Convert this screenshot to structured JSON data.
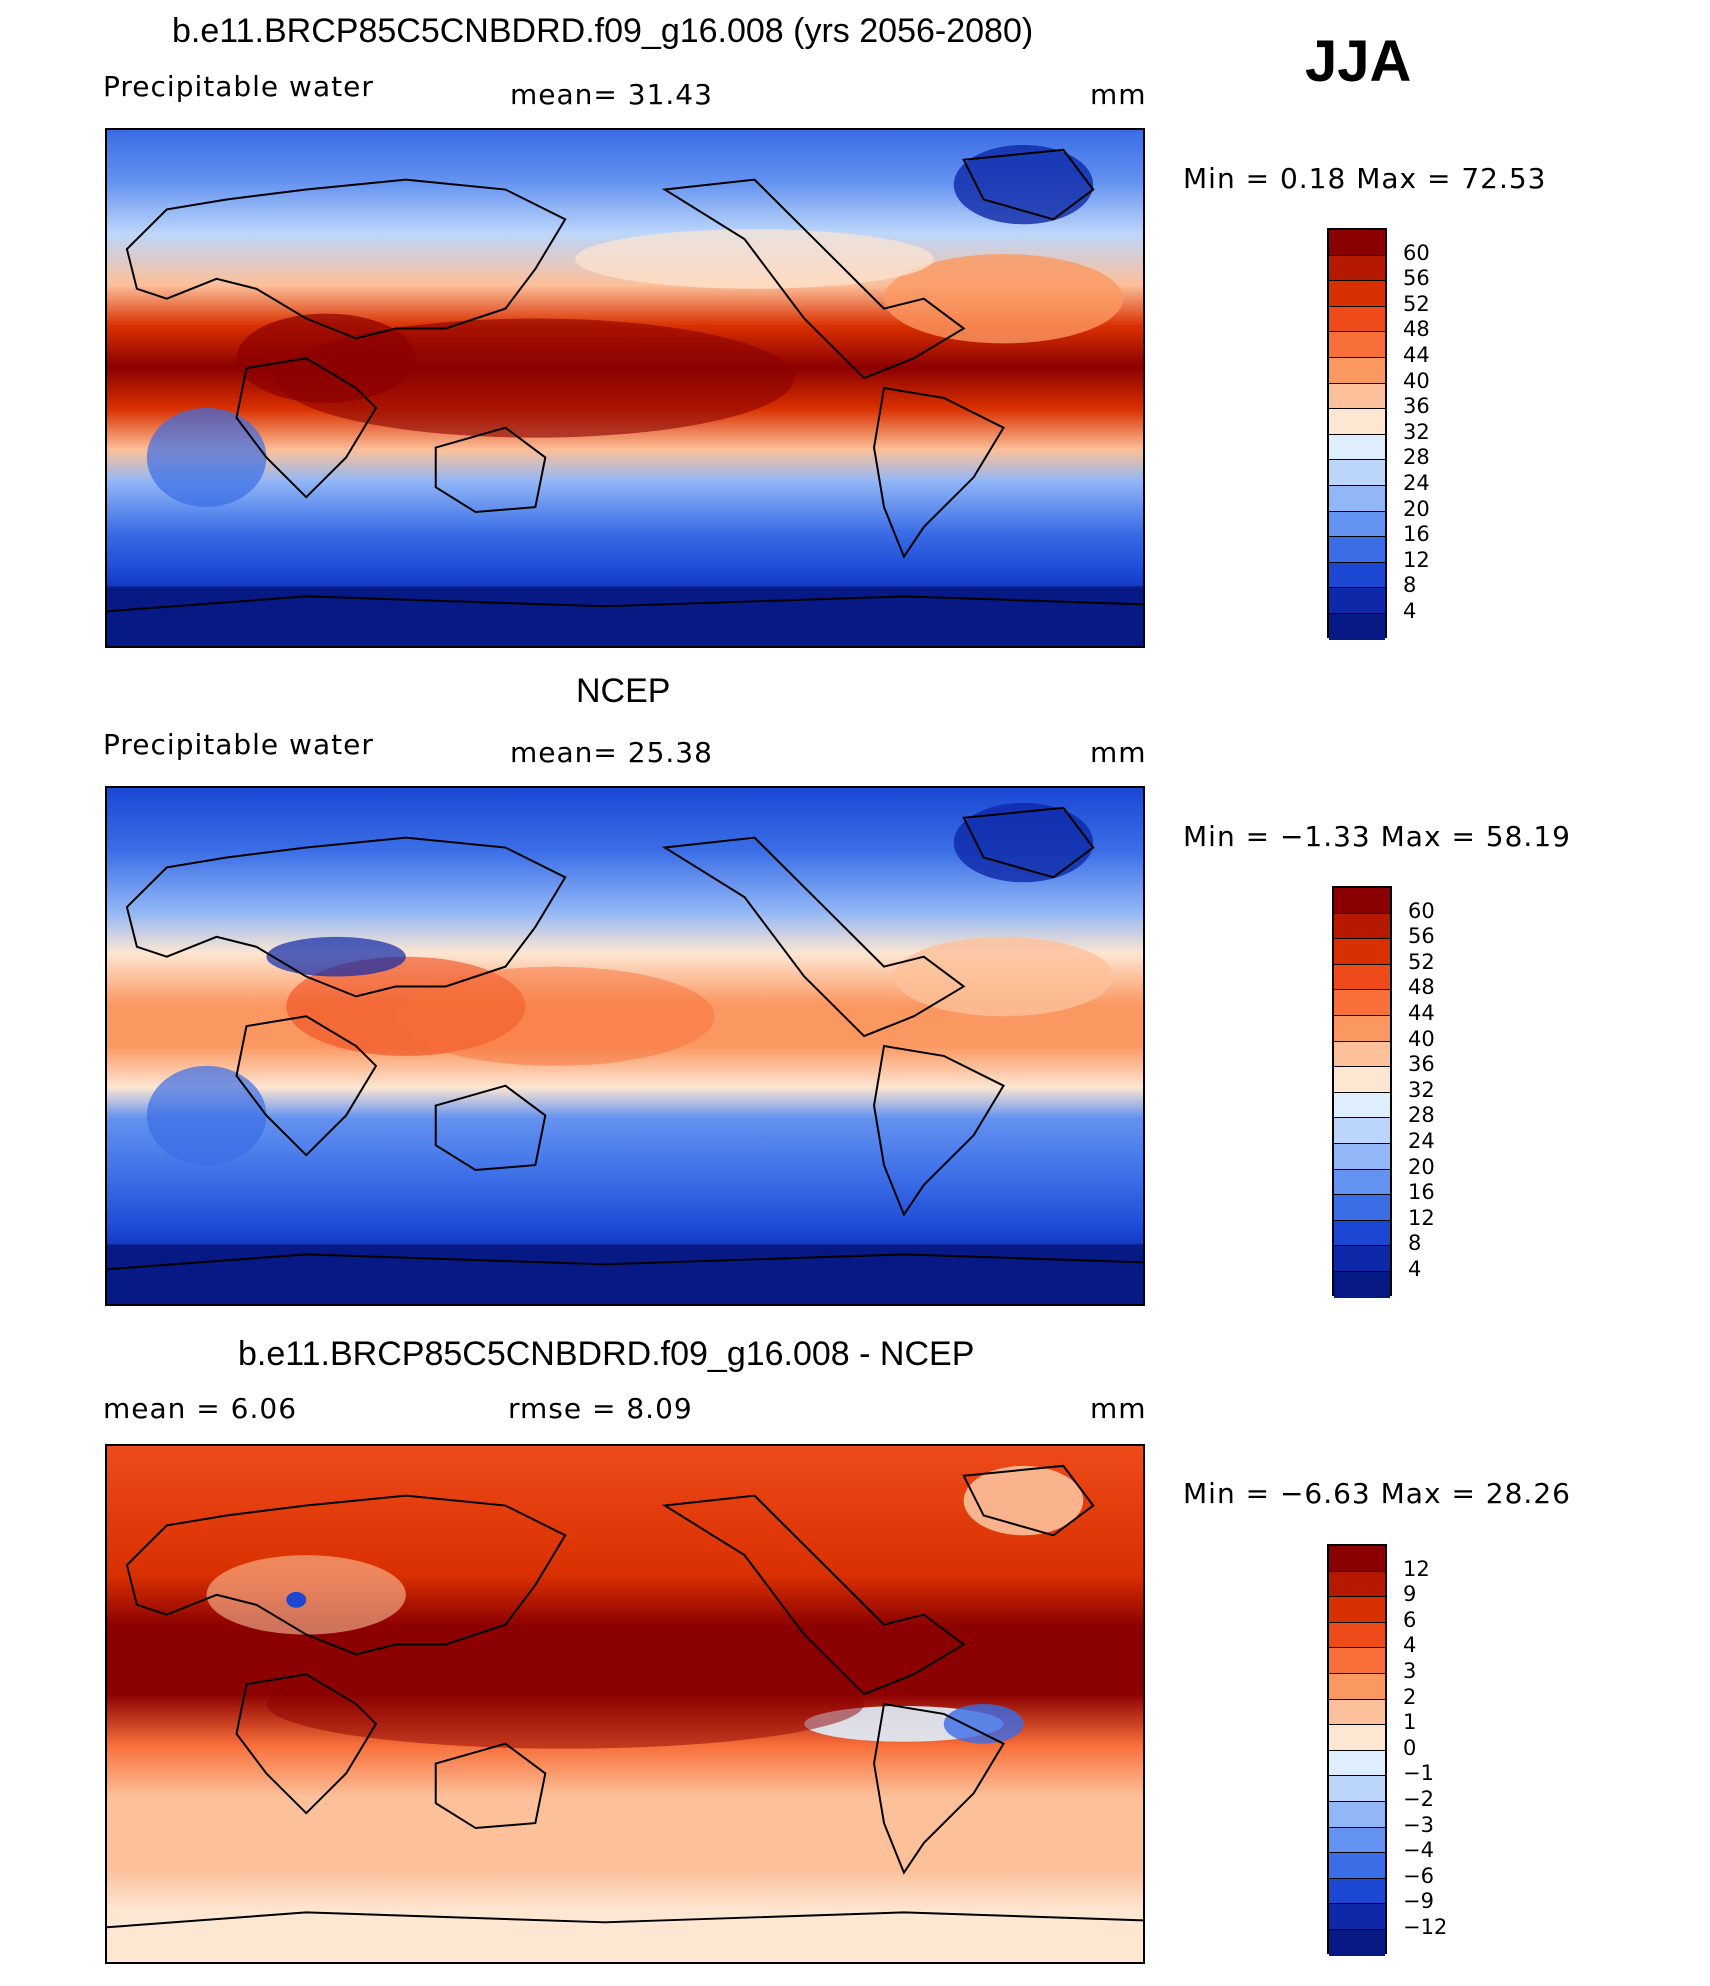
{
  "season": "JJA",
  "panels": [
    {
      "title": "b.e11.BRCP85C5CNBDRD.f09_g16.008 (yrs 2056-2080)",
      "left_label": "Precipitable  water",
      "mid_label": "mean=   31.43",
      "units": "mm",
      "minmax": "Min  =     0.18  Max  =    72.53",
      "colorbar": {
        "ticks": [
          "60",
          "56",
          "52",
          "48",
          "44",
          "40",
          "36",
          "32",
          "28",
          "24",
          "20",
          "16",
          "12",
          "8",
          "4"
        ],
        "colors": [
          "#8b0000",
          "#b51a00",
          "#d93000",
          "#ee4a1a",
          "#f86f3a",
          "#fb9862",
          "#fcc09a",
          "#fde6d2",
          "#dfeefc",
          "#bcd6fb",
          "#92b7f6",
          "#6492f0",
          "#3a6de6",
          "#1b47d3",
          "#0d28a8",
          "#061985"
        ]
      }
    },
    {
      "title": "NCEP",
      "left_label": "Precipitable  water",
      "mid_label": "mean=   25.38",
      "units": "mm",
      "minmax": "Min  =   −1.33  Max  =    58.19",
      "colorbar": {
        "ticks": [
          "60",
          "56",
          "52",
          "48",
          "44",
          "40",
          "36",
          "32",
          "28",
          "24",
          "20",
          "16",
          "12",
          "8",
          "4"
        ],
        "colors": [
          "#8b0000",
          "#b51a00",
          "#d93000",
          "#ee4a1a",
          "#f86f3a",
          "#fb9862",
          "#fcc09a",
          "#fde6d2",
          "#dfeefc",
          "#bcd6fb",
          "#92b7f6",
          "#6492f0",
          "#3a6de6",
          "#1b47d3",
          "#0d28a8",
          "#061985"
        ]
      }
    },
    {
      "title": "b.e11.BRCP85C5CNBDRD.f09_g16.008 - NCEP",
      "left_label": "mean  =      6.06",
      "mid_label": "rmse  =      8.09",
      "units": "mm",
      "minmax": "Min  =   −6.63  Max  =    28.26",
      "colorbar": {
        "ticks": [
          "12",
          "9",
          "6",
          "4",
          "3",
          "2",
          "1",
          "0",
          "−1",
          "−2",
          "−3",
          "−4",
          "−6",
          "−9",
          "−12"
        ],
        "colors": [
          "#8b0000",
          "#b51a00",
          "#d93000",
          "#ee4a1a",
          "#f86f3a",
          "#fb9862",
          "#fcc09a",
          "#fde6d2",
          "#dfeefc",
          "#bcd6fb",
          "#92b7f6",
          "#6492f0",
          "#3a6de6",
          "#1b47d3",
          "#0d28a8",
          "#061985"
        ]
      }
    }
  ]
}
